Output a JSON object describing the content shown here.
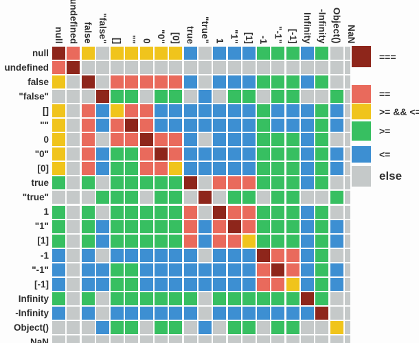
{
  "chart_data": {
    "type": "heatmap",
    "title": "",
    "x_labels": [
      "null",
      "undefined",
      "false",
      "\"false\"",
      "[]",
      "\"\"",
      "0",
      "\"0\"",
      "[0]",
      "true",
      "\"true\"",
      "1",
      "\"1\"",
      "[1]",
      "-1",
      "\"-1\"",
      "[-1]",
      "Infinity",
      "-Infinity",
      "Object()",
      "NaN"
    ],
    "y_labels": [
      "null",
      "undefined",
      "false",
      "\"false\"",
      "[]",
      "\"\"",
      "0",
      "\"0\"",
      "[0]",
      "true",
      "\"true\"",
      "1",
      "\"1\"",
      "[1]",
      "-1",
      "\"-1\"",
      "[-1]",
      "Infinity",
      "-Infinity",
      "Object()",
      "NaN"
    ],
    "code_meanings": {
      "D": "===",
      "E": "==",
      "Y": ">= && <=",
      "G": ">=",
      "B": "<=",
      "X": "else"
    },
    "palette": {
      "D": "#8e261b",
      "E": "#e96a5c",
      "Y": "#f0c41c",
      "G": "#37bf61",
      "B": "#3d8fd2",
      "X": "#c5c9c9"
    },
    "legend_position": "right",
    "grid": true,
    "matrix": [
      "DEYXYYYYYBXBBBGGGBGXX",
      "EDXXXXXXXXXXXXXXXXXXX",
      "YXDXEEEEEBXBBBGGGBGXX",
      "XXXDGGXGGXBXGGXGGXXGX",
      "YXEBYEEBBBBBBBGBBBGBX",
      "YXEBEDEBBBBBBBGBBBGBX",
      "YXEXEEDEEBXBBBGGGBGXX",
      "YXEBGGEDEBBBBBGGGBGBX",
      "YXEBGGEEYBBBBBGGGBGBX",
      "GXGXGGGGGDXEEEGGGBGXX",
      "XXXGGGXGGXDXGGXGGXXGX",
      "GXGXGGGGGEXDEEGGGBGXX",
      "GXGBGGGGGEBEDEGGGBGBX",
      "GXGBGGGGGEBEEYGGGBGBX",
      "BXBXBBBBBBXBBBDEEBGXX",
      "BXBBGGBBBBBBBBEDEBGBX",
      "BXBBGGBBBBBBBBEEYBGBX",
      "GXGXGGGGGGXGGGGGGDGXX",
      "BXBXBBBBBBXBBBBBBBDXX",
      "XXXBGGXGGXBXGGXGGXXYX",
      "XXXXXXXXXXXXXXXXXXXXX"
    ]
  },
  "legend": {
    "items": [
      {
        "label": "===",
        "code": "D"
      },
      {
        "label": "==",
        "code": "E"
      },
      {
        "label": ">= && <=",
        "code": "Y"
      },
      {
        "label": ">=",
        "code": "G"
      },
      {
        "label": "<=",
        "code": "B"
      },
      {
        "label": "else",
        "code": "X"
      }
    ]
  }
}
